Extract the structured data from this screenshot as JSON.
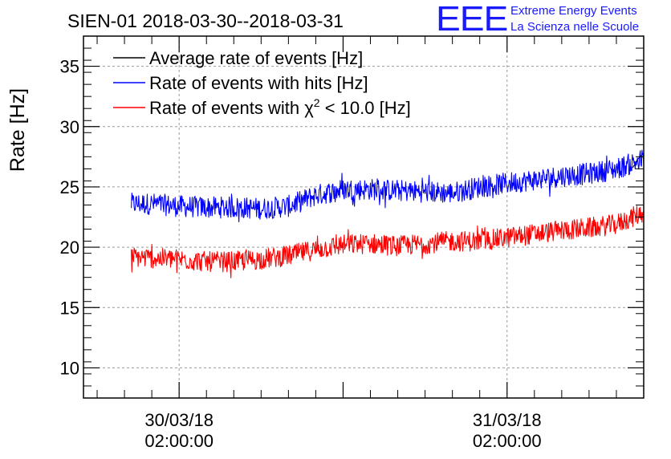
{
  "chart_data": {
    "type": "line",
    "title": "SIEN-01 2018-03-30--2018-03-31",
    "xlabel": "",
    "ylabel": "Rate [Hz]",
    "xlim": [
      -5,
      36
    ],
    "ylim": [
      7.5,
      37.5
    ],
    "yticks": [
      10,
      15,
      20,
      25,
      30,
      35
    ],
    "xticks": [
      {
        "value": 2,
        "label_date": "30/03/18",
        "label_time": "02:00:00"
      },
      {
        "value": 26,
        "label_date": "31/03/18",
        "label_time": "02:00:00"
      }
    ],
    "grid": true,
    "legend_position": "top-left",
    "legend": [
      {
        "label": "Average rate of events [Hz]",
        "color": "#000000"
      },
      {
        "label": "Rate of events with hits [Hz]",
        "color": "#0000ff"
      },
      {
        "label_prefix": "Rate of events with ",
        "label_symbol": "χ",
        "label_sup": "2",
        "label_suffix": " < 10.0 [Hz]",
        "color": "#ff0000"
      }
    ],
    "series": [
      {
        "name": "Average rate of events [Hz]",
        "color": "#000000",
        "x": [
          35.2,
          35.5,
          35.8,
          36.0
        ],
        "y": [
          26.6,
          27.2,
          27.6,
          27.4
        ]
      },
      {
        "name": "Rate of events with hits [Hz]",
        "color": "#0000ff",
        "noise": 0.9,
        "x": [
          -1.5,
          0,
          2,
          4,
          6,
          8,
          10,
          12,
          14,
          16,
          18,
          20,
          22,
          24,
          26,
          28,
          30,
          32,
          34,
          36
        ],
        "y": [
          23.6,
          23.6,
          23.4,
          23.3,
          23.3,
          23.2,
          23.4,
          24.3,
          24.8,
          24.8,
          24.7,
          24.6,
          24.5,
          25.0,
          25.3,
          25.6,
          25.9,
          26.1,
          26.5,
          27.3
        ]
      },
      {
        "name": "Rate of events with chi2 < 10.0 [Hz]",
        "color": "#ff0000",
        "noise": 0.85,
        "x": [
          -1.5,
          0,
          2,
          4,
          6,
          8,
          10,
          12,
          14,
          16,
          18,
          20,
          22,
          24,
          26,
          28,
          30,
          32,
          34,
          36
        ],
        "y": [
          19.2,
          19.1,
          19.0,
          18.8,
          18.8,
          19.0,
          19.3,
          19.8,
          20.2,
          20.3,
          20.1,
          20.3,
          20.5,
          20.5,
          20.8,
          21.1,
          21.4,
          21.6,
          21.9,
          22.9
        ]
      }
    ]
  },
  "logo": {
    "mark": "EEE",
    "line1": "Extreme Energy Events",
    "line2": "La Scienza nelle Scuole",
    "color": "#1a1aff"
  }
}
